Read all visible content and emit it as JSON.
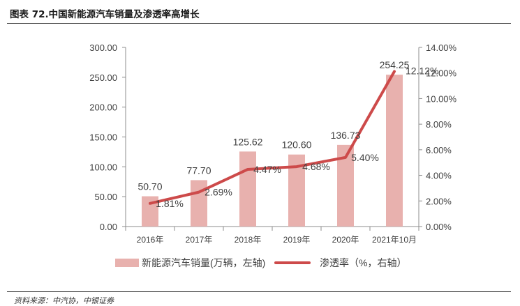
{
  "figure_title": "图表 72.中国新能源汽车销量及渗透率高增长",
  "source_note": "资料来源：中汽协，中银证券",
  "chart_data": {
    "type": "bar+line",
    "categories": [
      "2016年",
      "2017年",
      "2018年",
      "2019年",
      "2020年",
      "2021年10月"
    ],
    "series": [
      {
        "name": "新能源汽车销量(万辆，左轴)",
        "type": "bar",
        "axis": "left",
        "color": "#e8b1ae",
        "values": [
          50.7,
          77.7,
          125.62,
          120.6,
          136.73,
          254.25
        ],
        "labels": [
          "50.70",
          "77.70",
          "125.62",
          "120.60",
          "136.73",
          "254.25"
        ]
      },
      {
        "name": "渗透率（%，右轴）",
        "type": "line",
        "axis": "right",
        "color": "#cd4a4a",
        "values": [
          1.81,
          2.69,
          4.47,
          4.68,
          5.4,
          12.12
        ],
        "labels": [
          "1.81%",
          "2.69%",
          "4.47%",
          "4.68%",
          "5.40%",
          "12.12%"
        ]
      }
    ],
    "y_left": {
      "range": [
        0,
        300
      ],
      "ticks": [
        0,
        50,
        100,
        150,
        200,
        250,
        300
      ],
      "tick_labels": [
        "0.00",
        "50.00",
        "100.00",
        "150.00",
        "200.00",
        "250.00",
        "300.00"
      ]
    },
    "y_right": {
      "range": [
        0,
        14
      ],
      "ticks": [
        0,
        2,
        4,
        6,
        8,
        10,
        12,
        14
      ],
      "tick_labels": [
        "0.00%",
        "2.00%",
        "4.00%",
        "6.00%",
        "8.00%",
        "10.00%",
        "12.00%",
        "14.00%"
      ]
    },
    "grid": false,
    "legend_position": "bottom"
  }
}
